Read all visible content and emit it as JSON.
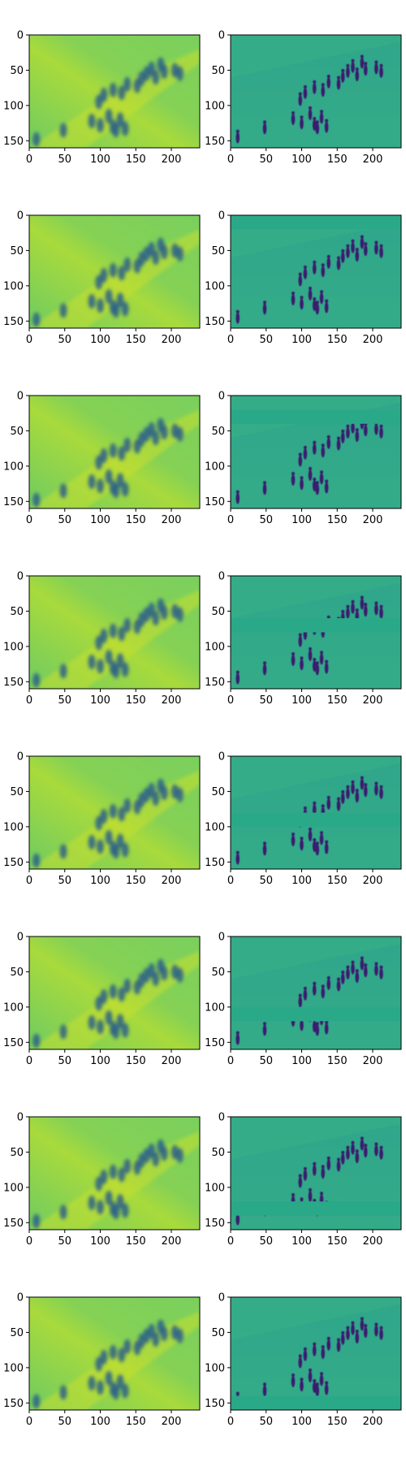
{
  "figure": {
    "rows": 8,
    "cols": 2,
    "colormap": "viridis",
    "x_ticks": [
      0,
      50,
      100,
      150,
      200
    ],
    "y_ticks": [
      0,
      50,
      100,
      150
    ],
    "x_range": [
      0,
      240
    ],
    "y_range": [
      0,
      160
    ],
    "panels": [
      {
        "row": 1,
        "left": "blurred reconstruction",
        "right": "detail map",
        "band_start": null,
        "band_end": null
      },
      {
        "row": 2,
        "left": "blurred reconstruction",
        "right": "detail map",
        "band_start": 0,
        "band_end": 20
      },
      {
        "row": 3,
        "left": "blurred reconstruction",
        "right": "detail map",
        "band_start": 20,
        "band_end": 40
      },
      {
        "row": 4,
        "left": "blurred reconstruction",
        "right": "detail map",
        "band_start": 60,
        "band_end": 80
      },
      {
        "row": 5,
        "left": "blurred reconstruction",
        "right": "detail map",
        "band_start": 80,
        "band_end": 100
      },
      {
        "row": 6,
        "left": "blurred reconstruction",
        "right": "detail map",
        "band_start": 100,
        "band_end": 120
      },
      {
        "row": 7,
        "left": "blurred reconstruction",
        "right": "detail map",
        "band_start": 120,
        "band_end": 140
      },
      {
        "row": 8,
        "left": "blurred reconstruction",
        "right": "detail map",
        "band_start": 140,
        "band_end": 160
      }
    ],
    "colors": {
      "left_bg": "#79cf5f",
      "left_bright": "#c8e02f",
      "left_dark": "#2c5f8a",
      "right_bg": "#30a88a",
      "right_dark": "#3b1f6e",
      "right_band": "#2aa988",
      "axis": "#000000"
    }
  }
}
